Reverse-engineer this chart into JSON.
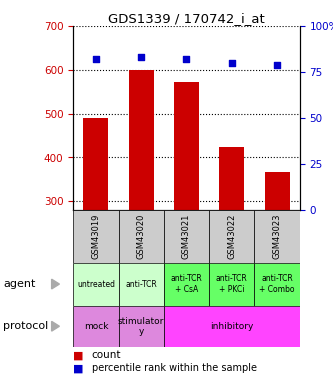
{
  "title": "GDS1339 / 170742_i_at",
  "samples": [
    "GSM43019",
    "GSM43020",
    "GSM43021",
    "GSM43022",
    "GSM43023"
  ],
  "counts": [
    490,
    601,
    573,
    424,
    368
  ],
  "percentiles": [
    82,
    83,
    82,
    80,
    79
  ],
  "ylim_left": [
    280,
    700
  ],
  "ylim_right": [
    0,
    100
  ],
  "yticks_left": [
    300,
    400,
    500,
    600,
    700
  ],
  "yticks_right": [
    0,
    25,
    50,
    75,
    100
  ],
  "bar_color": "#cc0000",
  "dot_color": "#0000cc",
  "agent_labels": [
    "untreated",
    "anti-TCR",
    "anti-TCR\n+ CsA",
    "anti-TCR\n+ PKCi",
    "anti-TCR\n+ Combo"
  ],
  "agent_colors_light": "#ccffcc",
  "agent_colors_dark": "#66ff66",
  "protocol_mock_color": "#dd88dd",
  "protocol_stim_color": "#dd88dd",
  "protocol_inhib_color": "#ff44ff",
  "sample_bg": "#cccccc",
  "left_tick_color": "#cc0000",
  "right_tick_color": "#0000cc",
  "grid_color": "#000000"
}
